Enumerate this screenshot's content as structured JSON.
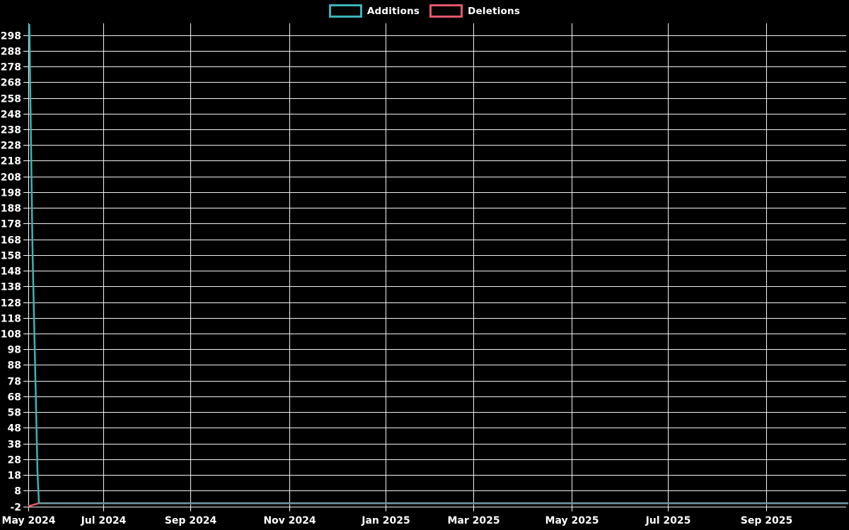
{
  "page": {
    "background": "#000000"
  },
  "chart_data": {
    "type": "line",
    "title": "",
    "legend_position": "top-center",
    "background": "#000000",
    "grid": true,
    "grid_color": "#f2f2f2",
    "axis_color": "#ffffff",
    "text_color": "#ffffff",
    "x_axis": {
      "label": "",
      "ticks": [
        {
          "label": "May 2024",
          "pos": 0.0
        },
        {
          "label": "Jul 2024",
          "pos": 0.0915
        },
        {
          "label": "Sep 2024",
          "pos": 0.1984
        },
        {
          "label": "Nov 2024",
          "pos": 0.3193
        },
        {
          "label": "Jan 2025",
          "pos": 0.4366
        },
        {
          "label": "Mar 2025",
          "pos": 0.5444
        },
        {
          "label": "May 2025",
          "pos": 0.6644
        },
        {
          "label": "Jul 2025",
          "pos": 0.7817
        },
        {
          "label": "Sep 2025",
          "pos": 0.9025
        }
      ]
    },
    "y_axis": {
      "label": "",
      "min": -2,
      "max": 305.5,
      "tick_values": [
        -2,
        8,
        18,
        28,
        38,
        48,
        58,
        68,
        78,
        88,
        98,
        108,
        118,
        128,
        138,
        148,
        158,
        168,
        178,
        188,
        198,
        208,
        218,
        228,
        238,
        248,
        258,
        268,
        278,
        288,
        298
      ]
    },
    "series": [
      {
        "name": "Additions",
        "color": "#3ab4b8",
        "summary": "Spike of ~305 additions in early May 2024, dropping to 0 within about a week, then flat at 0 through Oct 2025",
        "points": [
          {
            "pos": 0.0013,
            "value": 305
          },
          {
            "pos": 0.0052,
            "value": 160
          },
          {
            "pos": 0.0112,
            "value": 20
          },
          {
            "pos": 0.0129,
            "value": 0
          },
          {
            "pos": 1.0,
            "value": 0
          }
        ]
      },
      {
        "name": "Deletions",
        "color": "#e4576b",
        "summary": "-2 deletions in early May 2024 rising to 0, then flat at 0 through Oct 2025",
        "points": [
          {
            "pos": 0.0,
            "value": -2
          },
          {
            "pos": 0.0129,
            "value": 0
          },
          {
            "pos": 1.0,
            "value": 0
          }
        ]
      }
    ]
  }
}
